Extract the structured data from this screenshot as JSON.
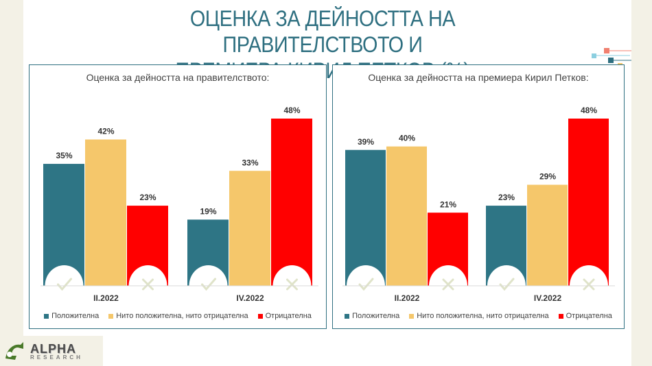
{
  "page": {
    "title_line1": "ОЦЕНКА ЗА ДЕЙНОСТТА НА ПРАВИТЕЛСТВОТО И",
    "title_line2": "ПРЕМИЕРА КИРИЛ ПЕТКОВ (%)"
  },
  "logo": {
    "name": "ALPHA",
    "sub": "RESEARCH"
  },
  "colors": {
    "positive": "#2e7585",
    "neutral": "#f5c76b",
    "negative": "#ff0000",
    "accent": "#2e6f80"
  },
  "chart_data": [
    {
      "type": "bar",
      "title": "Оценка за дейността на правителството:",
      "categories": [
        "II.2022",
        "IV.2022"
      ],
      "series": [
        {
          "name": "Положителна",
          "values": [
            35,
            19
          ]
        },
        {
          "name": "Нито положителна, нито отрицателна",
          "values": [
            42,
            33
          ]
        },
        {
          "name": "Отрицателна",
          "values": [
            23,
            48
          ]
        }
      ],
      "ylim": [
        0,
        48
      ],
      "value_suffix": "%",
      "legend": "bottom",
      "grid": false
    },
    {
      "type": "bar",
      "title": "Оценка за дейността на премиера Кирил Петков:",
      "categories": [
        "II.2022",
        "IV.2022"
      ],
      "series": [
        {
          "name": "Положителна",
          "values": [
            39,
            23
          ]
        },
        {
          "name": "Нито положителна, нито отрицателна",
          "values": [
            40,
            29
          ]
        },
        {
          "name": "Отрицателна",
          "values": [
            21,
            48
          ]
        }
      ],
      "ylim": [
        0,
        48
      ],
      "value_suffix": "%",
      "legend": "bottom",
      "grid": false
    }
  ]
}
